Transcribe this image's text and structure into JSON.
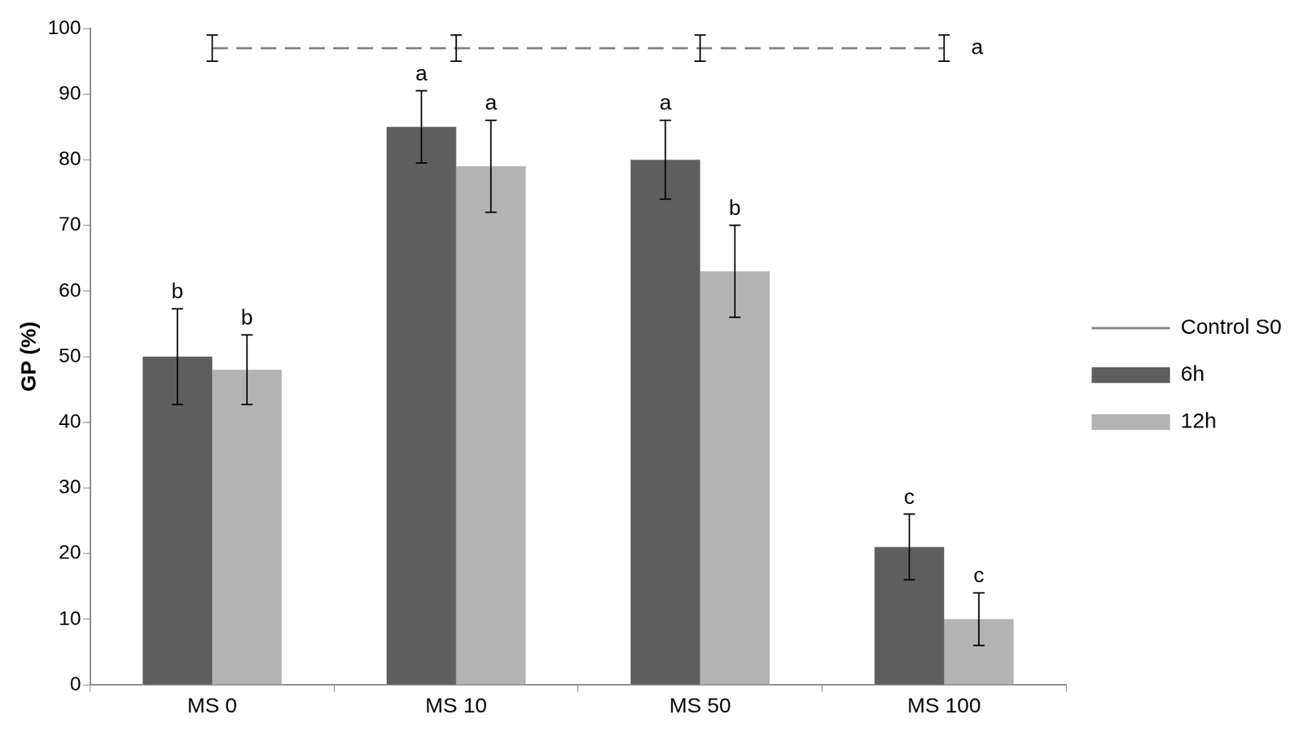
{
  "chart_data": {
    "type": "bar",
    "categories": [
      "MS 0",
      "MS 10",
      "MS 50",
      "MS 100"
    ],
    "y_label": "GP (%)",
    "ylim": [
      0,
      100
    ],
    "yticks": [
      0,
      10,
      20,
      30,
      40,
      50,
      60,
      70,
      80,
      90,
      100
    ],
    "grid": false,
    "legend": "right",
    "series": [
      {
        "name": "6h",
        "type": "bar",
        "color": "#5f5f5f",
        "values": [
          50,
          85,
          80,
          21
        ],
        "errors": [
          7.3,
          5.5,
          6,
          5
        ],
        "letters": [
          "b",
          "a",
          "a",
          "c"
        ]
      },
      {
        "name": "12h",
        "type": "bar",
        "color": "#b3b3b3",
        "values": [
          48,
          79,
          63,
          10
        ],
        "errors": [
          5.3,
          7,
          7,
          4
        ],
        "letters": [
          "b",
          "a",
          "b",
          "c"
        ]
      },
      {
        "name": "Control S0",
        "type": "line",
        "line_style": "dashed",
        "color": "#808080",
        "values": [
          97,
          97,
          97,
          97
        ],
        "errors": [
          2,
          2,
          2,
          2
        ],
        "letters": [
          null,
          null,
          null,
          "a"
        ]
      }
    ]
  }
}
